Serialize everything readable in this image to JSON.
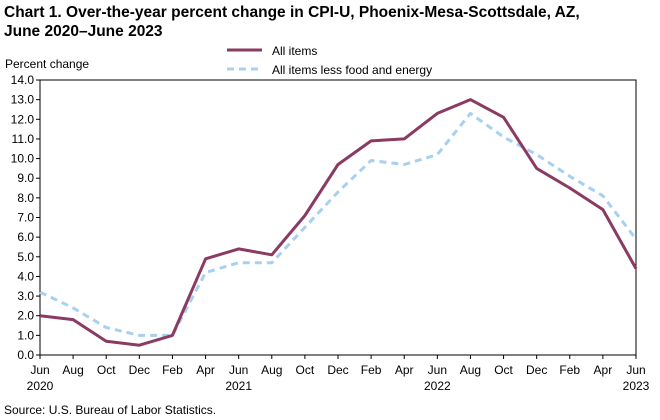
{
  "chart_data": {
    "type": "line",
    "title_lines": [
      "Chart 1. Over-the-year percent change in CPI-U, Phoenix-Mesa-Scottsdale,  AZ,",
      "June 2020–June 2023"
    ],
    "ylabel": "Percent change",
    "xlabel": "",
    "ylim": [
      0,
      14
    ],
    "yticks": [
      "0.0",
      "1.0",
      "2.0",
      "3.0",
      "4.0",
      "5.0",
      "6.0",
      "7.0",
      "8.0",
      "9.0",
      "10.0",
      "11.0",
      "12.0",
      "13.0",
      "14.0"
    ],
    "categories": [
      "Jun",
      "Aug",
      "Oct",
      "Dec",
      "Feb",
      "Apr",
      "Jun",
      "Aug",
      "Oct",
      "Dec",
      "Feb",
      "Apr",
      "Jun",
      "Aug",
      "Oct",
      "Dec",
      "Feb",
      "Apr",
      "Jun"
    ],
    "year_labels": [
      {
        "index": 0,
        "label": "2020"
      },
      {
        "index": 6,
        "label": "2021"
      },
      {
        "index": 12,
        "label": "2022"
      },
      {
        "index": 18,
        "label": "2023"
      }
    ],
    "series": [
      {
        "name": "All items",
        "color": "#8b3a62",
        "style": "solid",
        "values": [
          2.0,
          1.8,
          0.7,
          0.5,
          1.0,
          4.9,
          5.4,
          5.1,
          7.1,
          9.7,
          10.9,
          11.0,
          12.3,
          13.0,
          12.1,
          9.5,
          8.5,
          7.4,
          4.4
        ]
      },
      {
        "name": "All items less food and energy",
        "color": "#a8d0f0",
        "style": "dashed",
        "values": [
          3.2,
          2.4,
          1.4,
          1.0,
          1.0,
          4.2,
          4.7,
          4.7,
          6.5,
          8.3,
          9.9,
          9.7,
          10.2,
          12.3,
          11.1,
          10.2,
          9.1,
          8.1,
          5.9
        ]
      }
    ],
    "legend_position": "top",
    "grid": false,
    "source": "Source: U.S. Bureau  of Labor Statistics."
  }
}
